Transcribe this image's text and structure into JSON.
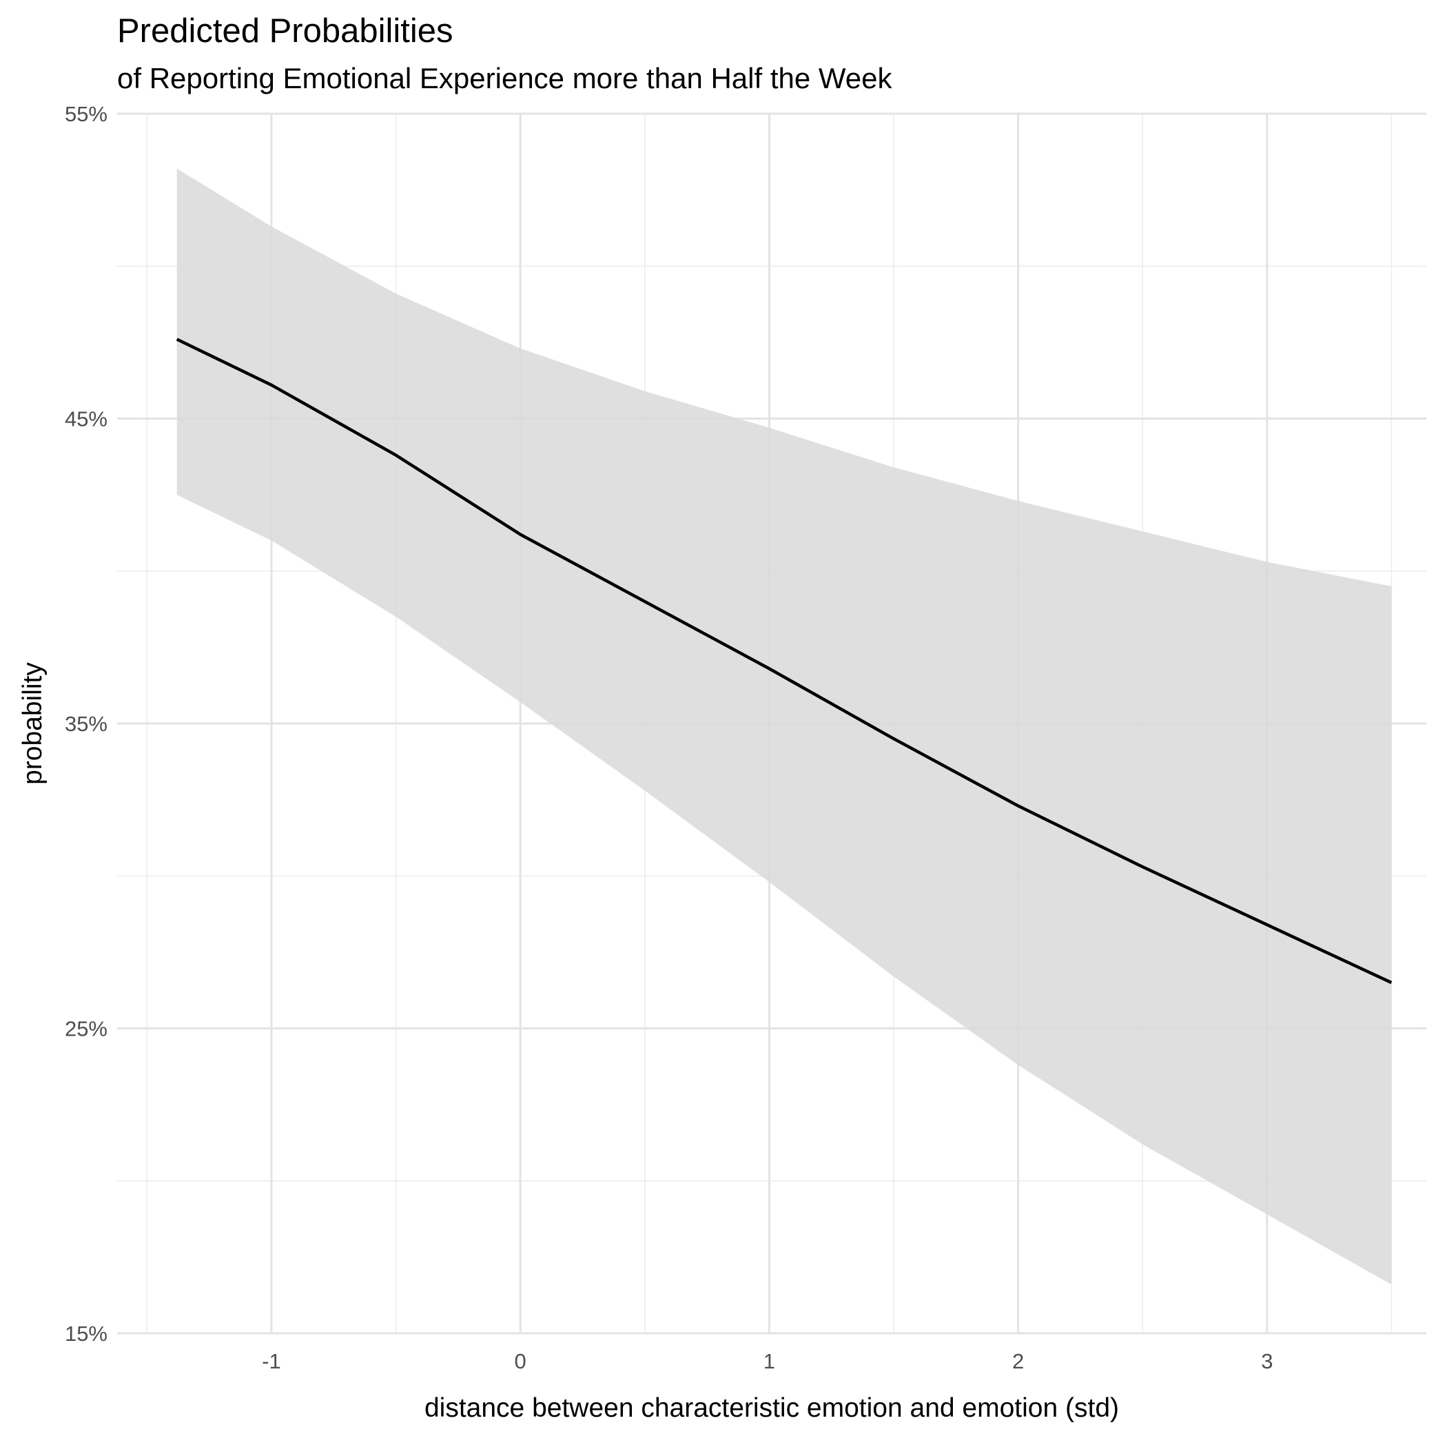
{
  "chart_data": {
    "type": "line",
    "title": "Predicted Probabilities",
    "subtitle": "of Reporting Emotional Experience more than Half the Week",
    "xlabel": "distance between characteristic emotion and emotion (std)",
    "ylabel": "probability",
    "xlim": [
      -1.62,
      3.64
    ],
    "ylim": [
      15,
      55
    ],
    "x_ticks": [
      -1,
      0,
      1,
      2,
      3
    ],
    "x_tick_labels": [
      "-1",
      "0",
      "1",
      "2",
      "3"
    ],
    "y_ticks": [
      15,
      25,
      35,
      45,
      55
    ],
    "y_tick_labels": [
      "15%",
      "25%",
      "35%",
      "45%",
      "55%"
    ],
    "grid": true,
    "series": [
      {
        "x": [
          -1.38,
          -1.0,
          -0.5,
          0.0,
          0.5,
          1.0,
          1.5,
          2.0,
          2.5,
          3.0,
          3.5
        ],
        "y": [
          47.6,
          46.1,
          43.8,
          41.2,
          39.0,
          36.8,
          34.5,
          32.3,
          30.3,
          28.4,
          26.5
        ],
        "lower": [
          42.5,
          41.0,
          38.5,
          35.7,
          32.8,
          29.8,
          26.7,
          23.8,
          21.2,
          18.9,
          16.6
        ],
        "upper": [
          53.2,
          51.3,
          49.1,
          47.3,
          45.9,
          44.7,
          43.4,
          42.3,
          41.3,
          40.3,
          39.5
        ],
        "color": "#000000",
        "ribbon_color": "#d9d9d9"
      }
    ]
  }
}
